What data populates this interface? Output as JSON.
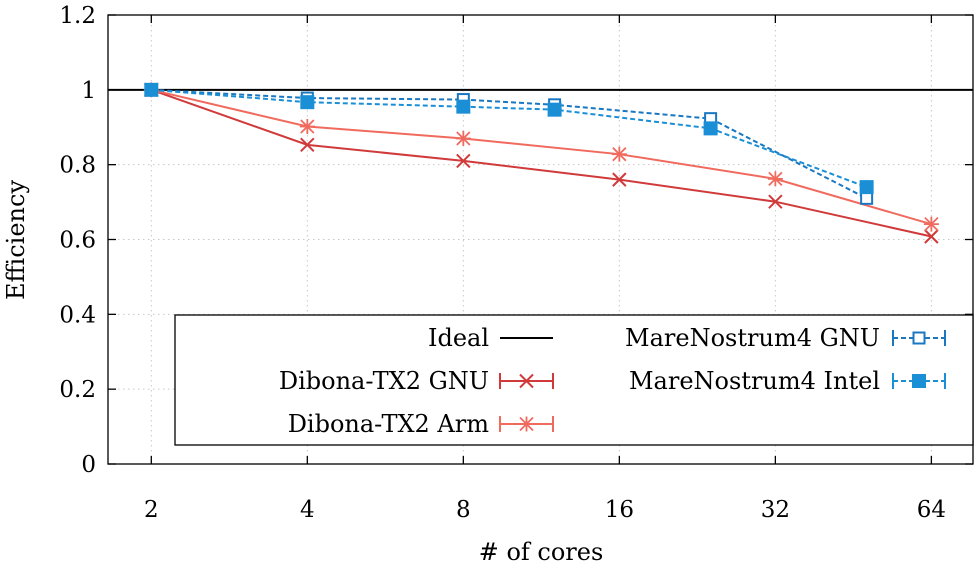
{
  "chart_data": {
    "type": "line",
    "title": "",
    "xlabel": "# of cores",
    "ylabel": "Efficiency",
    "x_scale": "log2",
    "x_ticks": [
      2,
      4,
      8,
      16,
      32,
      64
    ],
    "x_tick_labels": [
      "2",
      "4",
      "8",
      "16",
      "32",
      "64"
    ],
    "xlim": [
      1.65,
      77
    ],
    "y_ticks": [
      0,
      0.2,
      0.4,
      0.6,
      0.8,
      1,
      1.2
    ],
    "y_tick_labels": [
      "0",
      "0.2",
      "0.4",
      "0.6",
      "0.8",
      "1",
      "1.2"
    ],
    "ylim": [
      0,
      1.2
    ],
    "grid": true,
    "legend_position": "bottom-right",
    "series": [
      {
        "name": "Ideal",
        "color": "#000000",
        "dashed": false,
        "marker": "none",
        "x": [
          1.65,
          77
        ],
        "y": [
          1,
          1
        ]
      },
      {
        "name": "Dibona-TX2 GNU",
        "color": "#d03a3a",
        "dashed": false,
        "marker": "x",
        "x": [
          2,
          4,
          8,
          16,
          32,
          64
        ],
        "y": [
          1.0,
          0.853,
          0.81,
          0.76,
          0.701,
          0.608
        ]
      },
      {
        "name": "Dibona-TX2 Arm",
        "color": "#f06a5e",
        "dashed": false,
        "marker": "star",
        "x": [
          2,
          4,
          8,
          16,
          32,
          64
        ],
        "y": [
          1.0,
          0.902,
          0.87,
          0.828,
          0.762,
          0.641
        ]
      },
      {
        "name": "MareNostrum4 GNU",
        "color": "#1a78c2",
        "dashed": true,
        "marker": "open-square",
        "x": [
          2,
          4,
          8,
          12,
          24,
          48
        ],
        "y": [
          1.0,
          0.978,
          0.974,
          0.96,
          0.923,
          0.71
        ]
      },
      {
        "name": "MareNostrum4 Intel",
        "color": "#1a8fd6",
        "dashed": true,
        "marker": "filled-square",
        "x": [
          2,
          4,
          8,
          12,
          24,
          48
        ],
        "y": [
          1.0,
          0.967,
          0.955,
          0.947,
          0.897,
          0.74
        ]
      }
    ]
  }
}
